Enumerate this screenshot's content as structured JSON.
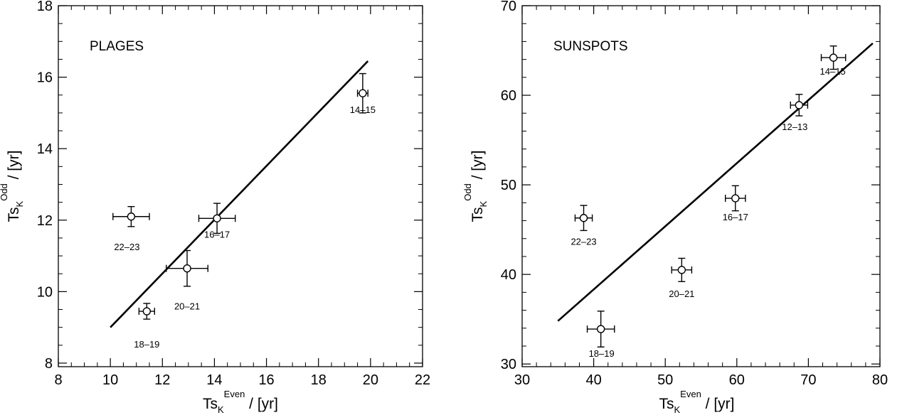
{
  "chart_data": [
    {
      "type": "scatter",
      "panel_label": "PLAGES",
      "xlabel": {
        "base": "Ts",
        "sub": "K",
        "sup": "Even",
        "unit": " / [yr]"
      },
      "ylabel": {
        "base": "Ts",
        "sub": "K",
        "sup": "Odd",
        "unit": " / [yr]"
      },
      "xlim": [
        8,
        22
      ],
      "ylim": [
        7.9,
        18
      ],
      "xticks": [
        8,
        10,
        12,
        14,
        16,
        18,
        20,
        22
      ],
      "xtick_labels": [
        "8",
        "10",
        "12",
        "14",
        "16",
        "18",
        "20",
        "22"
      ],
      "yticks": [
        8,
        10,
        12,
        14,
        16,
        18
      ],
      "ytick_labels": [
        "8",
        "10",
        "12",
        "14",
        "16",
        "18"
      ],
      "grid": false,
      "points": [
        {
          "label": "14–15",
          "x": 19.7,
          "y": 15.55,
          "xerr": 0.2,
          "yerr": 0.55
        },
        {
          "label": "16–17",
          "x": 14.1,
          "y": 12.05,
          "xerr": 0.7,
          "yerr": 0.42
        },
        {
          "label": "18–19",
          "x": 11.4,
          "y": 9.45,
          "xerr": 0.3,
          "yerr": 0.22
        },
        {
          "label": "20–21",
          "x": 12.95,
          "y": 10.65,
          "xerr": 0.8,
          "yerr": 0.5
        },
        {
          "label": "22–23",
          "x": 10.8,
          "y": 12.1,
          "xerr": 0.7,
          "yerr": 0.28
        }
      ],
      "fit_line": {
        "x": [
          10,
          19.9
        ],
        "y": [
          9.0,
          16.45
        ]
      }
    },
    {
      "type": "scatter",
      "panel_label": "SUNSPOTS",
      "xlabel": {
        "base": "Ts",
        "sub": "K",
        "sup": "Even",
        "unit": " / [yr]"
      },
      "ylabel": {
        "base": "Ts",
        "sub": "K",
        "sup": "Odd",
        "unit": " / [yr]"
      },
      "xlim": [
        30,
        80
      ],
      "ylim": [
        29.7,
        70
      ],
      "xticks": [
        30,
        40,
        50,
        60,
        70,
        80
      ],
      "xtick_labels": [
        "30",
        "40",
        "50",
        "60",
        "70",
        "80"
      ],
      "yticks": [
        30,
        40,
        50,
        60,
        70
      ],
      "ytick_labels": [
        "30",
        "40",
        "50",
        "60",
        "70"
      ],
      "grid": false,
      "points": [
        {
          "label": "14–15",
          "x": 73.5,
          "y": 64.2,
          "xerr": 1.7,
          "yerr": 1.3
        },
        {
          "label": "12–13",
          "x": 68.7,
          "y": 58.9,
          "xerr": 1.2,
          "yerr": 1.2
        },
        {
          "label": "16–17",
          "x": 59.8,
          "y": 48.5,
          "xerr": 1.4,
          "yerr": 1.4
        },
        {
          "label": "20–21",
          "x": 52.3,
          "y": 40.5,
          "xerr": 1.4,
          "yerr": 1.3
        },
        {
          "label": "18–19",
          "x": 41.0,
          "y": 33.9,
          "xerr": 1.9,
          "yerr": 2.0
        },
        {
          "label": "22–23",
          "x": 38.6,
          "y": 46.3,
          "xerr": 1.2,
          "yerr": 1.4
        }
      ],
      "fit_line": {
        "x": [
          35,
          79
        ],
        "y": [
          34.8,
          65.8
        ]
      }
    }
  ]
}
